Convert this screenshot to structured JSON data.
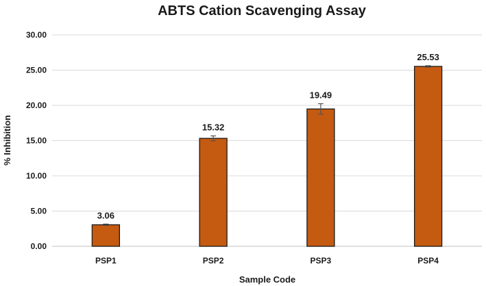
{
  "chart_data": {
    "type": "bar",
    "title": "ABTS Cation Scavenging Assay",
    "xlabel": "Sample Code",
    "ylabel": "% Inhibition",
    "categories": [
      "PSP1",
      "PSP2",
      "PSP3",
      "PSP4"
    ],
    "values": [
      3.06,
      15.32,
      19.49,
      25.53
    ],
    "value_labels": [
      "3.06",
      "15.32",
      "19.49",
      "25.53"
    ],
    "errors": [
      0.1,
      0.35,
      0.75,
      0.1
    ],
    "ylim": [
      0,
      30
    ],
    "yticks": [
      "0.00",
      "5.00",
      "10.00",
      "15.00",
      "20.00",
      "25.00",
      "30.00"
    ],
    "ytick_values": [
      0,
      5,
      10,
      15,
      20,
      25,
      30
    ],
    "grid": true,
    "legend": "none",
    "bar_color": "#c55a11"
  }
}
